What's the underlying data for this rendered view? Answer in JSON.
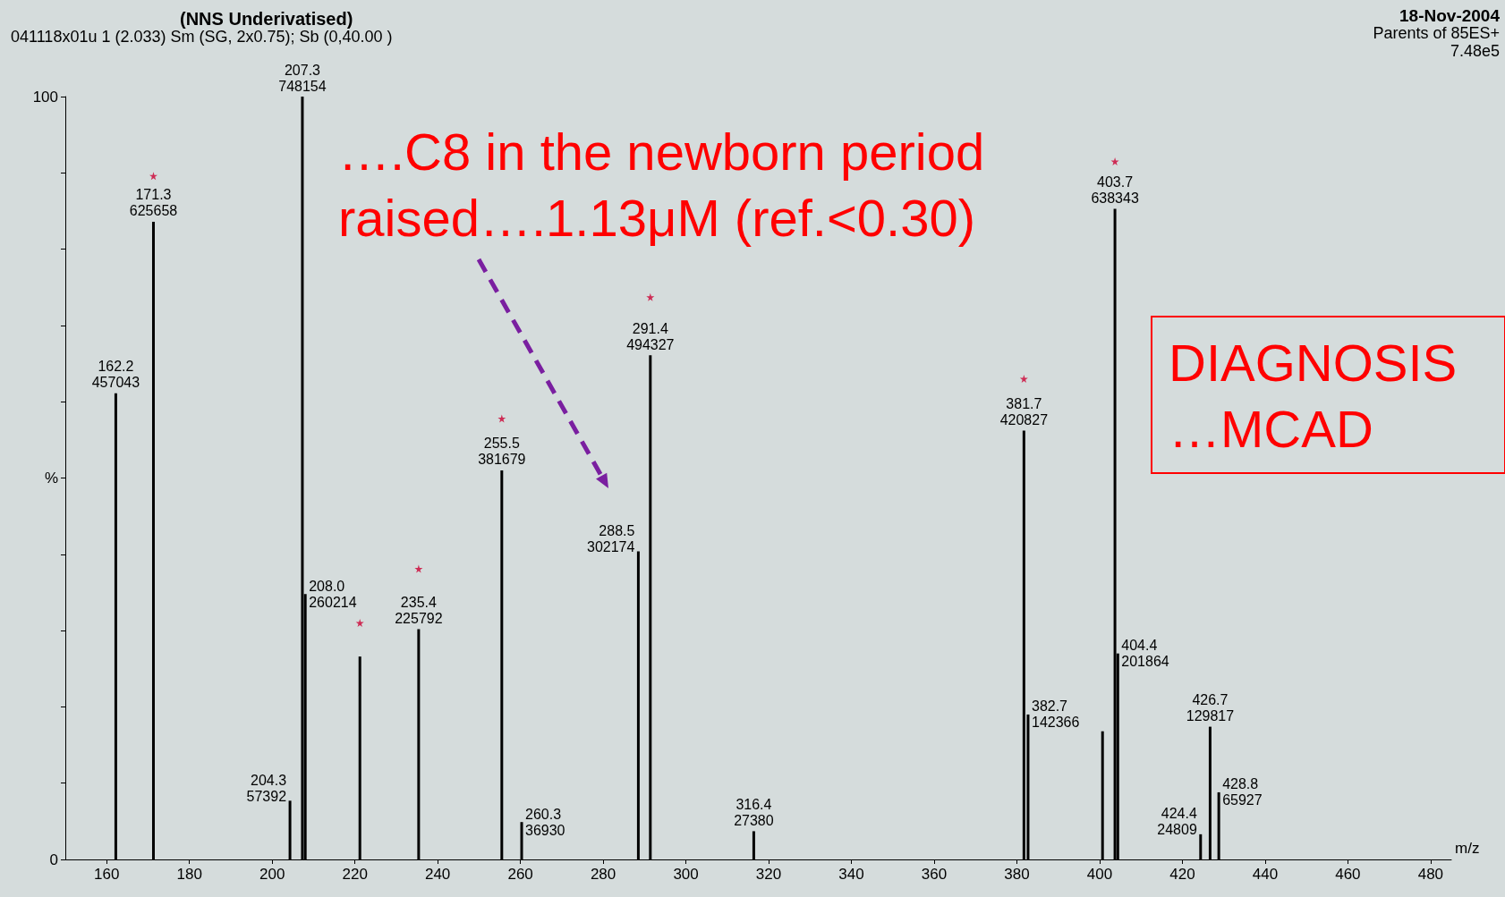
{
  "chart_data": {
    "type": "bar",
    "title": "(NNS Underivatised)",
    "subtitle": "041118x01u 1 (2.033) Sm (SG, 2x0.75); Sb (0,40.00 )",
    "xlabel": "m/z",
    "annotations": [
      "18-Nov-2004",
      "Parents of 85ES+",
      "7.48e5",
      "….C8 in the newborn period\nraised….1.13μM (ref.<0.30)",
      "DIAGNOSIS\n…MCAD",
      {
        "text": "162.2\n457043",
        "x": 162.2,
        "y": 61.1
      },
      {
        "text": "171.3\n625658",
        "x": 171.3,
        "y": 83.6
      },
      {
        "text": "204.3\n57392",
        "x": 204.3,
        "y": 7.7
      },
      {
        "text": "207.3\n748154",
        "x": 207.3,
        "y": 100
      },
      {
        "text": "208.0\n260214",
        "x": 208.0,
        "y": 34.8
      },
      {
        "text": "235.4\n225792",
        "x": 235.4,
        "y": 30.2
      },
      {
        "text": "255.5\n381679",
        "x": 255.5,
        "y": 51.0
      },
      {
        "text": "260.3\n36930",
        "x": 260.3,
        "y": 4.9
      },
      {
        "text": "288.5\n302174",
        "x": 288.5,
        "y": 40.4
      },
      {
        "text": "291.4\n494327",
        "x": 291.4,
        "y": 66.1
      },
      {
        "text": "316.4\n27380",
        "x": 316.4,
        "y": 3.7
      },
      {
        "text": "381.7\n420827",
        "x": 381.7,
        "y": 56.2
      },
      {
        "text": "382.7\n142366",
        "x": 382.7,
        "y": 19.0
      },
      {
        "text": "403.7\n638343",
        "x": 403.7,
        "y": 85.3
      },
      {
        "text": "404.4\n201864",
        "x": 404.4,
        "y": 27.0
      },
      {
        "text": "424.4\n24809",
        "x": 424.4,
        "y": 3.3
      },
      {
        "text": "426.7\n129817",
        "x": 426.7,
        "y": 17.4
      },
      {
        "text": "428.8\n65927",
        "x": 428.8,
        "y": 8.8
      }
    ],
    "xlim": [
      150,
      485
    ],
    "xticks": [
      160,
      180,
      200,
      220,
      240,
      260,
      280,
      300,
      320,
      340,
      360,
      380,
      400,
      420,
      440,
      460,
      480
    ],
    "ylim": [
      0,
      100
    ],
    "yticks": [
      0,
      {
        "value": 10,
        "label": null
      },
      {
        "value": 20,
        "label": null
      },
      {
        "value": 30,
        "label": null
      },
      {
        "value": 40,
        "label": null
      },
      {
        "value": 50,
        "label": "%"
      },
      {
        "value": 60,
        "label": null
      },
      {
        "value": 70,
        "label": null
      },
      {
        "value": 80,
        "label": null
      },
      {
        "value": 90,
        "label": null
      },
      100
    ],
    "grid": false,
    "series": [
      {
        "color": "#000000",
        "x": [
          162.2,
          171.3,
          204.3,
          207.3,
          208.0,
          221.2,
          235.4,
          255.5,
          260.3,
          288.5,
          291.4,
          316.4,
          381.7,
          382.7,
          400.7,
          403.7,
          404.4,
          424.4,
          426.7,
          428.8
        ],
        "values": [
          61.1,
          83.6,
          7.7,
          100,
          34.8,
          26.6,
          30.2,
          51.0,
          4.9,
          40.4,
          66.1,
          3.7,
          56.2,
          19.0,
          16.8,
          85.3,
          27.0,
          3.3,
          17.4,
          8.8
        ]
      },
      {
        "type": "scatter",
        "marker": "star",
        "color": "#cc0033",
        "x": [
          171.3,
          221.2,
          235.4,
          255.5,
          291.4,
          381.7,
          403.7
        ],
        "values": [
          89.6,
          31.0,
          38.1,
          57.8,
          73.7,
          63.0,
          91.5
        ]
      }
    ]
  }
}
